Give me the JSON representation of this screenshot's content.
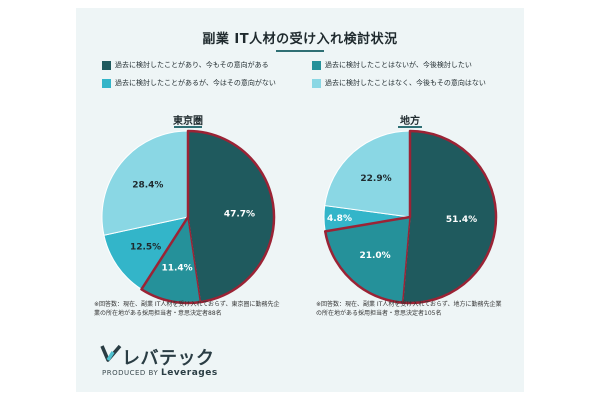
{
  "title": "副業 IT人材の受け入れ検討状況",
  "legend": [
    {
      "label": "過去に検討したことがあり、今もその意向がある",
      "color": "#1f5a5e"
    },
    {
      "label": "過去に検討したことはないが、今後検討したい",
      "color": "#25919a"
    },
    {
      "label": "過去に検討したことがあるが、今はその意向がない",
      "color": "#33b5c9"
    },
    {
      "label": "過去に検討したことはなく、今後もその意向はない",
      "color": "#8ad7e4"
    }
  ],
  "highlight_color": "#9b2335",
  "chart_data": [
    {
      "type": "pie",
      "title": "東京圏",
      "labels": [
        "過去に検討したことがあり、今もその意向がある",
        "過去に検討したことはないが、今後検討したい",
        "過去に検討したことがあるが、今はその意向がない",
        "過去に検討したことはなく、今後もその意向はない"
      ],
      "values": [
        47.7,
        11.4,
        12.5,
        28.4
      ],
      "value_labels": [
        "47.7%",
        "11.4%",
        "12.5%",
        "28.4%"
      ],
      "highlighted": [
        0,
        1
      ],
      "footnote": "※回答数：現在、副業 IT人材を受け入れておらず、東京圏に勤務先企業の所在地がある採用担当者・意思決定者88名"
    },
    {
      "type": "pie",
      "title": "地方",
      "labels": [
        "過去に検討したことがあり、今もその意向がある",
        "過去に検討したことはないが、今後検討したい",
        "過去に検討したことがあるが、今はその意向がない",
        "過去に検討したことはなく、今後もその意向はない"
      ],
      "values": [
        51.4,
        21.0,
        4.8,
        22.9
      ],
      "value_labels": [
        "51.4%",
        "21.0%",
        "4.8%",
        "22.9%"
      ],
      "highlighted": [
        0,
        1
      ],
      "footnote": "※回答数：現在、副業 IT人材を受け入れておらず、地方に勤務先企業の所在地がある採用担当者・意思決定者105名"
    }
  ],
  "logo": {
    "name": "レバテック",
    "produced_by": "PRODUCED BY",
    "company": "Leverages"
  }
}
